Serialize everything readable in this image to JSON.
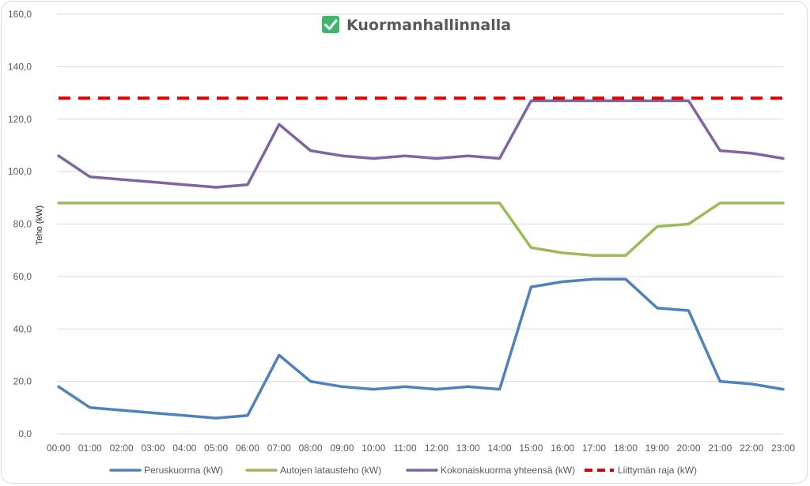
{
  "chart_data": {
    "type": "line",
    "title": "Kuormanhallinnalla",
    "title_icon": "check-mark-icon",
    "ylabel": "Teho (kW)",
    "xlabel": "",
    "ylim": [
      0,
      160
    ],
    "yticks": [
      "0,0",
      "20,0",
      "40,0",
      "60,0",
      "80,0",
      "100,0",
      "120,0",
      "140,0",
      "160,0"
    ],
    "grid": true,
    "legend_position": "bottom",
    "categories": [
      "00:00",
      "01:00",
      "02:00",
      "03:00",
      "04:00",
      "05:00",
      "06:00",
      "07:00",
      "08:00",
      "09:00",
      "10:00",
      "11:00",
      "12:00",
      "13:00",
      "14:00",
      "15:00",
      "16:00",
      "17:00",
      "18:00",
      "19:00",
      "20:00",
      "21:00",
      "22:00",
      "23:00"
    ],
    "series": [
      {
        "name": "Peruskuorma (kW)",
        "color": "#4f81bd",
        "dashed": false,
        "values": [
          18,
          10,
          9,
          8,
          7,
          6,
          7,
          30,
          20,
          18,
          17,
          18,
          17,
          18,
          17,
          56,
          58,
          59,
          59,
          48,
          47,
          20,
          19,
          17
        ]
      },
      {
        "name": "Autojen latausteho (kW)",
        "color": "#9bbb59",
        "dashed": false,
        "values": [
          88,
          88,
          88,
          88,
          88,
          88,
          88,
          88,
          88,
          88,
          88,
          88,
          88,
          88,
          88,
          71,
          69,
          68,
          68,
          79,
          80,
          88,
          88,
          88
        ]
      },
      {
        "name": "Kokonaiskuorma yhteensä (kW)",
        "color": "#8064a2",
        "dashed": false,
        "values": [
          106,
          98,
          97,
          96,
          95,
          94,
          95,
          118,
          108,
          106,
          105,
          106,
          105,
          106,
          105,
          127,
          127,
          127,
          127,
          127,
          127,
          108,
          107,
          105
        ]
      },
      {
        "name": "Liittymän raja (kW)",
        "color": "#e00000",
        "dashed": true,
        "values": [
          128,
          128,
          128,
          128,
          128,
          128,
          128,
          128,
          128,
          128,
          128,
          128,
          128,
          128,
          128,
          128,
          128,
          128,
          128,
          128,
          128,
          128,
          128,
          128
        ]
      }
    ]
  }
}
